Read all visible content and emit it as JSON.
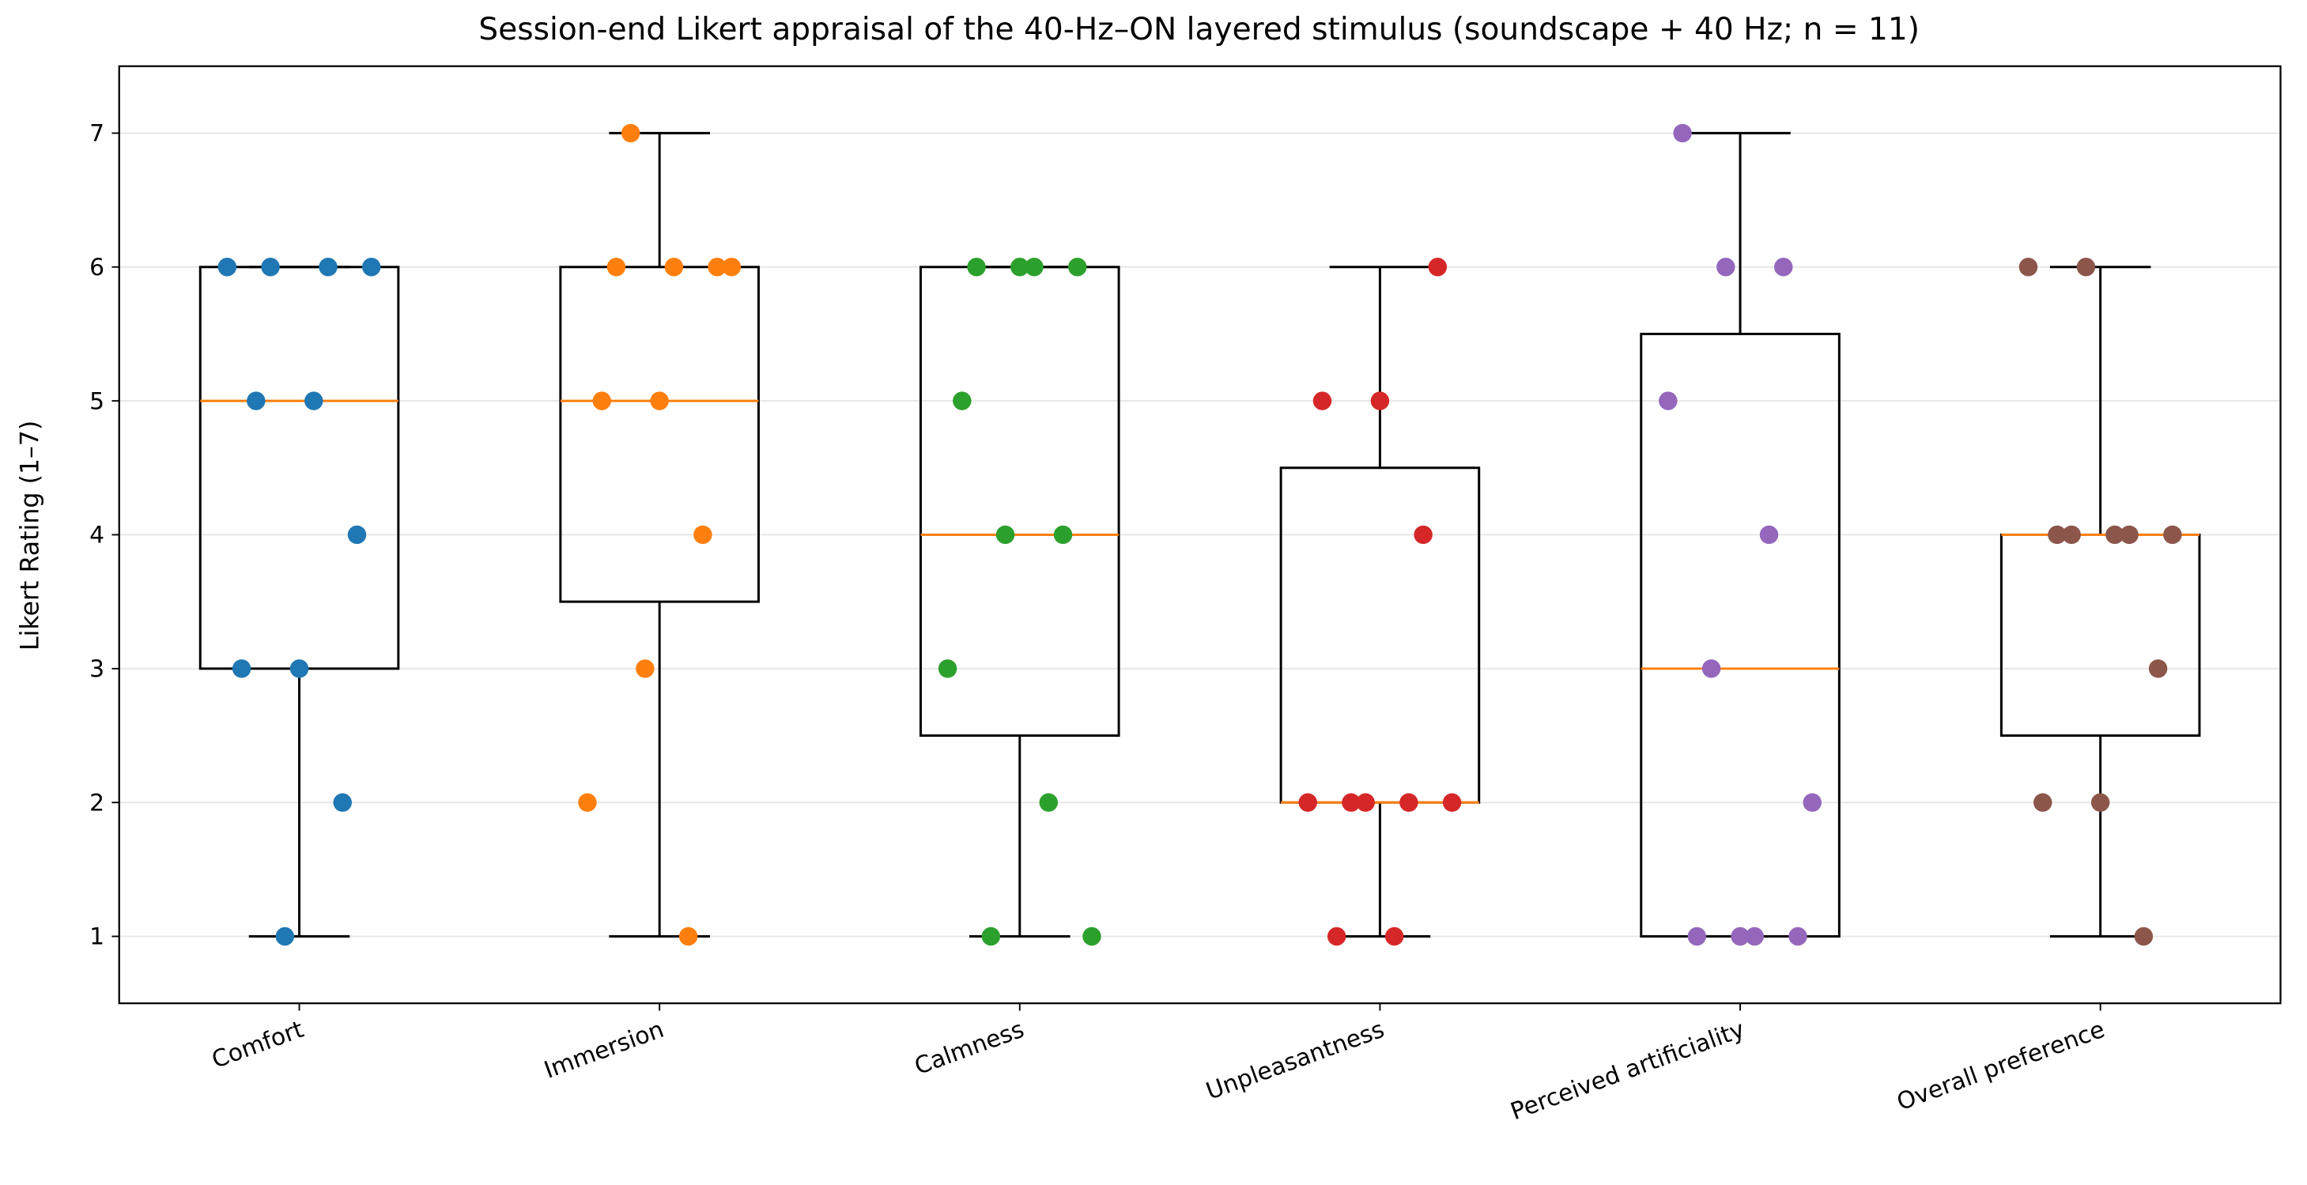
{
  "chart_data": {
    "type": "box",
    "title": "Session-end Likert appraisal of the 40-Hz–ON layered stimulus (soundscape + 40 Hz; n = 11)",
    "y_label": "Likert Rating (1–7)",
    "categories": [
      "Comfort",
      "Immersion",
      "Calmness",
      "Unpleasantness",
      "Perceived artificiality",
      "Overall preference"
    ],
    "boxes": [
      {
        "whislo": 1,
        "q1": 3,
        "median": 5,
        "q3": 6,
        "whishi": 6
      },
      {
        "whislo": 1,
        "q1": 3.5,
        "median": 5,
        "q3": 6,
        "whishi": 7
      },
      {
        "whislo": 1,
        "q1": 2.5,
        "median": 4,
        "q3": 6,
        "whishi": 6
      },
      {
        "whislo": 1,
        "q1": 2,
        "median": 2,
        "q3": 4.5,
        "whishi": 6
      },
      {
        "whislo": 1,
        "q1": 1,
        "median": 3,
        "q3": 5.5,
        "whishi": 7
      },
      {
        "whislo": 1,
        "q1": 2.5,
        "median": 4,
        "q3": 4,
        "whishi": 6
      }
    ],
    "points": [
      [
        6,
        6,
        6,
        6,
        5,
        5,
        4,
        3,
        3,
        2,
        1
      ],
      [
        7,
        6,
        6,
        6,
        6,
        5,
        5,
        4,
        3,
        2,
        1
      ],
      [
        6,
        6,
        6,
        6,
        5,
        4,
        4,
        3,
        2,
        1,
        1
      ],
      [
        6,
        5,
        5,
        4,
        2,
        2,
        2,
        2,
        2,
        1,
        1
      ],
      [
        7,
        6,
        6,
        5,
        4,
        3,
        2,
        1,
        1,
        1,
        1
      ],
      [
        6,
        6,
        4,
        4,
        4,
        4,
        4,
        3,
        2,
        2,
        1
      ]
    ],
    "point_colors": [
      "#1f77b4",
      "#ff7f0e",
      "#2ca02c",
      "#d62728",
      "#9467bd",
      "#8c564b"
    ],
    "median_color": "#ff7f0e",
    "box_color": "#000000",
    "ylim": [
      0.5,
      7.5
    ],
    "yticks": [
      1,
      2,
      3,
      4,
      5,
      6,
      7
    ],
    "grid": true
  }
}
